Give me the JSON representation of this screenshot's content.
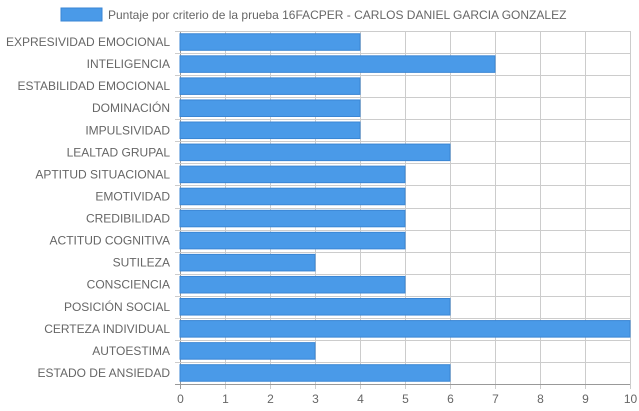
{
  "chart_data": {
    "type": "bar",
    "orientation": "horizontal",
    "categories": [
      "EXPRESIVIDAD EMOCIONAL",
      "INTELIGENCIA",
      "ESTABILIDAD EMOCIONAL",
      "DOMINACIÓN",
      "IMPULSIVIDAD",
      "LEALTAD GRUPAL",
      "APTITUD SITUACIONAL",
      "EMOTIVIDAD",
      "CREDIBILIDAD",
      "ACTITUD COGNITIVA",
      "SUTILEZA",
      "CONSCIENCIA",
      "POSICIÓN SOCIAL",
      "CERTEZA INDIVIDUAL",
      "AUTOESTIMA",
      "ESTADO DE ANSIEDAD"
    ],
    "series": [
      {
        "name": "Puntaje por criterio de la prueba 16FACPER - CARLOS DANIEL GARCIA GONZALEZ",
        "values": [
          4,
          7,
          4,
          4,
          4,
          6,
          5,
          5,
          5,
          5,
          3,
          5,
          6,
          10,
          3,
          6
        ],
        "color": "#4a9ae8",
        "border_color": "#3a86d4"
      }
    ],
    "xlim": [
      0,
      10
    ],
    "xticks": [
      "0",
      "1",
      "2",
      "3",
      "4",
      "5",
      "6",
      "7",
      "8",
      "9",
      "10"
    ],
    "grid": true,
    "legend_position": "top"
  }
}
